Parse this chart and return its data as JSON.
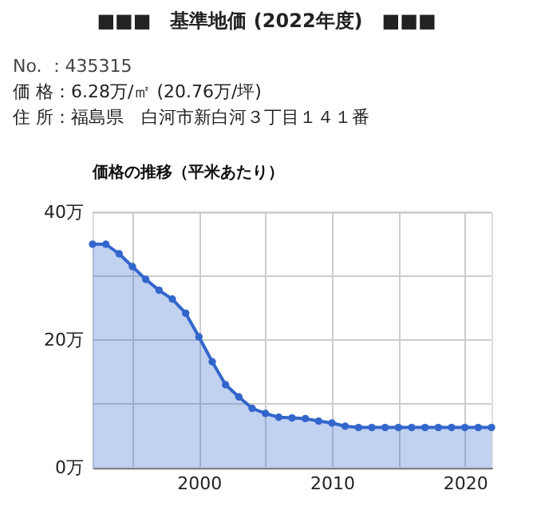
{
  "chart_data": {
    "type": "area",
    "title": "■■■　基準地価 (2022年度)　■■■",
    "annotations": [
      "No. ：435315",
      "価 格：6.28万/㎡ (20.76万/坪)",
      "住 所：福島県　白河市新白河３丁目１４１番"
    ],
    "subtitle": "価格の推移（平米あたり）",
    "x": [
      1992,
      1993,
      1994,
      1995,
      1996,
      1997,
      1998,
      1999,
      2000,
      2001,
      2002,
      2003,
      2004,
      2005,
      2006,
      2007,
      2008,
      2009,
      2010,
      2011,
      2012,
      2013,
      2014,
      2015,
      2016,
      2017,
      2018,
      2019,
      2020,
      2021,
      2022
    ],
    "series": [
      {
        "color": "#3366cc",
        "values": [
          35.0,
          35.0,
          33.5,
          31.5,
          29.5,
          27.8,
          26.4,
          24.2,
          20.5,
          16.6,
          13.0,
          11.1,
          9.3,
          8.5,
          7.9,
          7.8,
          7.7,
          7.3,
          7.0,
          6.5,
          6.3,
          6.3,
          6.3,
          6.3,
          6.3,
          6.3,
          6.3,
          6.3,
          6.3,
          6.3,
          6.3
        ]
      }
    ],
    "xlim": [
      1992,
      2022
    ],
    "xticks": [
      {
        "value": 1995,
        "label": null
      },
      2000,
      {
        "value": 2005,
        "label": null
      },
      2010,
      {
        "value": 2015,
        "label": null
      },
      2020
    ],
    "ylim": [
      0,
      40
    ],
    "yticks": [
      {
        "value": 0,
        "label": "0万"
      },
      {
        "value": 10,
        "label": null
      },
      {
        "value": 20,
        "label": "20万"
      },
      {
        "value": 30,
        "label": null
      },
      {
        "value": 40,
        "label": "40万"
      }
    ],
    "grid": true,
    "marker": "circle",
    "line_style": "solid"
  }
}
